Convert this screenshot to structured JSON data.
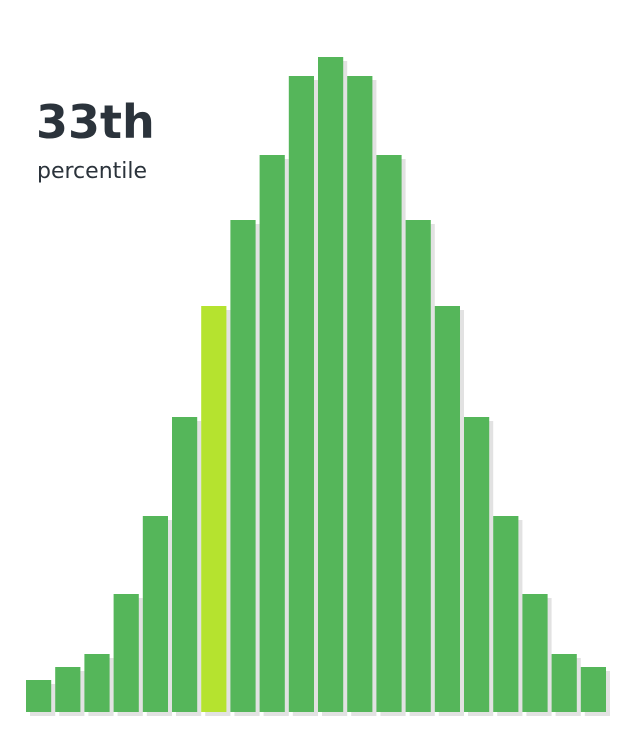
{
  "chart_data": {
    "type": "bar",
    "title": "33th",
    "subtitle": "percentile",
    "values": [
      32,
      45,
      58,
      118,
      196,
      295,
      406,
      492,
      557,
      636,
      655,
      636,
      557,
      492,
      406,
      295,
      196,
      118,
      58,
      45
    ],
    "colors": [
      "#55b65a",
      "#55b65a",
      "#55b65a",
      "#55b65a",
      "#55b65a",
      "#55b65a",
      "#b5e32f",
      "#55b65a",
      "#55b65a",
      "#55b65a",
      "#55b65a",
      "#55b65a",
      "#55b65a",
      "#55b65a",
      "#55b65a",
      "#55b65a",
      "#55b65a",
      "#55b65a",
      "#55b65a",
      "#55b65a"
    ],
    "ylim": [
      0,
      680
    ]
  }
}
